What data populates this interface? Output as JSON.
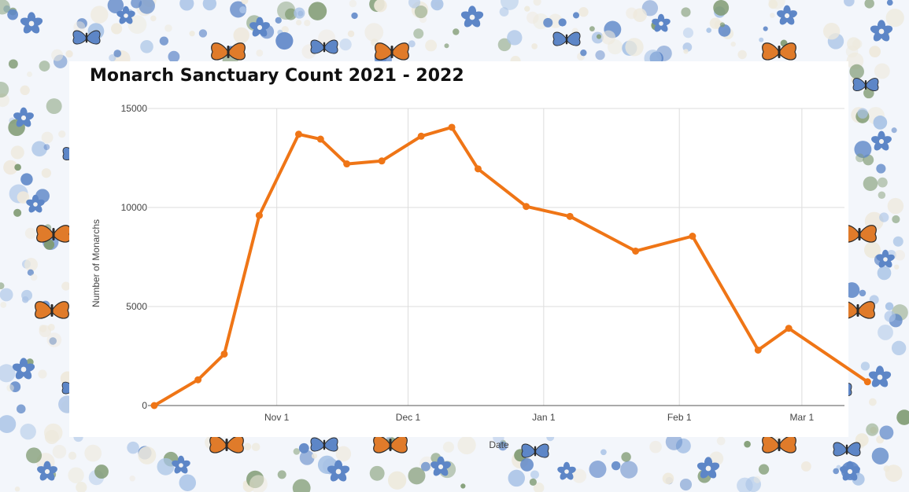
{
  "chart_data": {
    "type": "line",
    "title": "Monarch Sanctuary Count 2021 - 2022",
    "xlabel": "Date",
    "ylabel": "Number of Monarchs",
    "ylim": [
      0,
      15000
    ],
    "yticks": [
      0,
      5000,
      10000,
      15000
    ],
    "xlim": [
      "2021-10-04",
      "2022-03-16"
    ],
    "xticks": [
      {
        "date": "2021-11-01",
        "label": "Nov 1"
      },
      {
        "date": "2021-12-01",
        "label": "Dec 1"
      },
      {
        "date": "2022-01-01",
        "label": "Jan 1"
      },
      {
        "date": "2022-02-01",
        "label": "Feb 1"
      },
      {
        "date": "2022-03-01",
        "label": "Mar 1"
      }
    ],
    "grid": true,
    "series": [
      {
        "color": "#ef7516",
        "points": [
          {
            "x": "2021-10-04",
            "y": 0
          },
          {
            "x": "2021-10-14",
            "y": 1300
          },
          {
            "x": "2021-10-20",
            "y": 2600
          },
          {
            "x": "2021-10-28",
            "y": 9600
          },
          {
            "x": "2021-11-06",
            "y": 13700
          },
          {
            "x": "2021-11-11",
            "y": 13450
          },
          {
            "x": "2021-11-17",
            "y": 12200
          },
          {
            "x": "2021-11-25",
            "y": 12350
          },
          {
            "x": "2021-12-04",
            "y": 13600
          },
          {
            "x": "2021-12-11",
            "y": 14050
          },
          {
            "x": "2021-12-17",
            "y": 11950
          },
          {
            "x": "2021-12-28",
            "y": 10050
          },
          {
            "x": "2022-01-07",
            "y": 9550
          },
          {
            "x": "2022-01-22",
            "y": 7800
          },
          {
            "x": "2022-02-04",
            "y": 8550
          },
          {
            "x": "2022-02-19",
            "y": 2800
          },
          {
            "x": "2022-02-26",
            "y": 3900
          },
          {
            "x": "2022-03-16",
            "y": 1200
          }
        ]
      }
    ]
  },
  "decoration": {
    "border_theme": "watercolor blue flowers and butterflies",
    "colors": {
      "accent_blue": "#5d86c7",
      "light_blue": "#a9c3e6",
      "leaf_green": "#7f9a72",
      "butterfly_orange": "#e07b2a",
      "cream": "#eee9dc"
    }
  }
}
